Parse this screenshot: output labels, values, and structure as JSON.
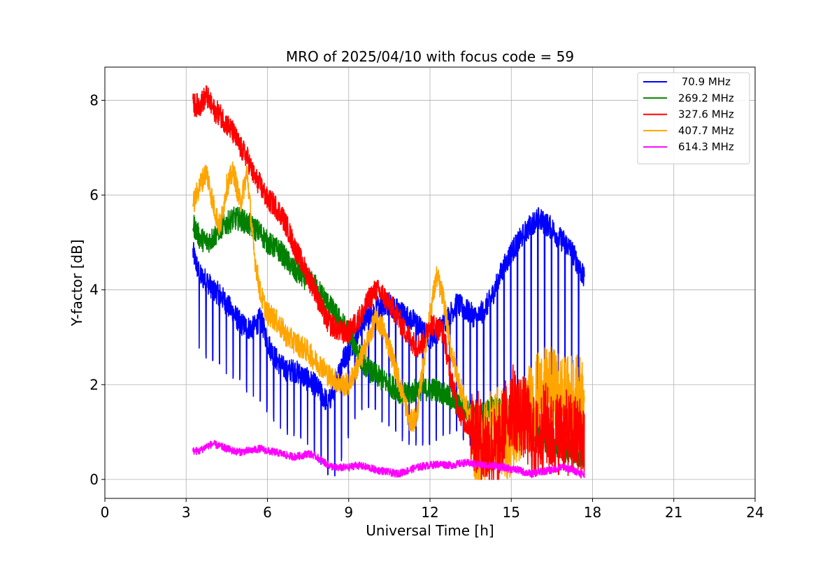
{
  "chart_data": {
    "type": "line",
    "title": "MRO of 2025/04/10 with focus code = 59",
    "xlabel": "Universal Time [h]",
    "ylabel": "Y-factor [dB]",
    "xlim": [
      0,
      24
    ],
    "ylim": [
      -0.4,
      8.7
    ],
    "xticks": [
      0,
      3,
      6,
      9,
      12,
      15,
      18,
      21,
      24
    ],
    "yticks": [
      0,
      2,
      4,
      6,
      8
    ],
    "grid": true,
    "legend_position": "top-right",
    "series": [
      {
        "name": " 70.9 MHz",
        "color": "#0000ff",
        "x": [
          3.25,
          3.5,
          3.75,
          4.0,
          4.25,
          4.5,
          4.75,
          5.0,
          5.25,
          5.5,
          5.75,
          6.0,
          6.25,
          6.5,
          6.75,
          7.0,
          7.25,
          7.5,
          7.75,
          8.0,
          8.25,
          8.5,
          8.75,
          9.0,
          9.25,
          9.5,
          9.75,
          10.0,
          10.25,
          10.5,
          10.75,
          11.0,
          11.25,
          11.5,
          11.75,
          12.0,
          12.25,
          12.5,
          12.75,
          13.0,
          13.25,
          13.5,
          13.75,
          14.0,
          14.25,
          14.5,
          14.75,
          15.0,
          15.25,
          15.5,
          15.75,
          16.0,
          16.25,
          16.5,
          16.75,
          17.0,
          17.25,
          17.5,
          17.7
        ],
        "y": [
          4.8,
          4.3,
          4.2,
          4.0,
          3.9,
          3.7,
          3.5,
          3.3,
          3.2,
          3.2,
          3.4,
          2.9,
          2.6,
          2.4,
          2.3,
          2.3,
          2.2,
          2.1,
          2.0,
          1.8,
          1.6,
          2.0,
          2.5,
          2.7,
          3.0,
          3.3,
          3.5,
          3.6,
          3.7,
          3.7,
          3.6,
          3.5,
          3.4,
          3.3,
          3.1,
          3.0,
          3.1,
          3.3,
          3.5,
          3.7,
          3.6,
          3.5,
          3.4,
          3.6,
          3.8,
          4.2,
          4.5,
          4.8,
          5.0,
          5.2,
          5.4,
          5.5,
          5.4,
          5.3,
          5.1,
          5.0,
          4.8,
          4.5,
          4.2
        ],
        "dips": [
          2.8,
          2.7,
          2.6,
          2.5,
          2.4,
          2.3,
          2.2,
          2.1,
          1.9,
          1.8,
          1.6,
          1.5,
          1.3,
          1.1,
          1.0,
          1.0,
          0.9,
          0.8,
          0.5,
          0.3,
          0.0,
          0.0,
          0.5,
          1.0,
          1.3,
          1.5,
          1.5,
          1.4,
          1.2,
          1.1,
          1.0,
          0.9,
          0.8,
          0.8,
          0.7,
          0.7,
          0.8,
          0.9,
          1.0,
          1.1,
          0.9,
          0.8,
          0.6,
          0.6,
          0.7,
          0.8,
          0.9,
          1.0,
          1.2,
          1.3,
          1.4,
          1.5,
          1.4,
          1.3,
          1.2,
          1.1,
          1.0,
          0.9,
          0.9
        ]
      },
      {
        "name": "269.2 MHz",
        "color": "#008000",
        "x": [
          3.25,
          3.5,
          3.75,
          4.0,
          4.25,
          4.5,
          4.75,
          5.0,
          5.25,
          5.5,
          5.75,
          6.0,
          6.25,
          6.5,
          6.75,
          7.0,
          7.25,
          7.5,
          7.75,
          8.0,
          8.25,
          8.5,
          8.75,
          9.0,
          9.25,
          9.5,
          9.75,
          10.0,
          10.25,
          10.5,
          10.75,
          11.0,
          11.25,
          11.5,
          11.75,
          12.0,
          12.25,
          12.5,
          12.75,
          13.0,
          13.25,
          13.5,
          13.75,
          14.0,
          14.25,
          14.5,
          14.75,
          15.0,
          15.25,
          15.5,
          15.75,
          16.0,
          16.25,
          16.5,
          16.75,
          17.0,
          17.25,
          17.5,
          17.7
        ],
        "y": [
          5.4,
          5.1,
          5.0,
          5.1,
          5.3,
          5.4,
          5.5,
          5.5,
          5.4,
          5.3,
          5.2,
          5.0,
          4.9,
          4.8,
          4.6,
          4.4,
          4.3,
          4.2,
          4.1,
          3.9,
          3.7,
          3.5,
          3.3,
          3.1,
          2.8,
          2.5,
          2.3,
          2.2,
          2.1,
          2.0,
          1.9,
          1.8,
          1.8,
          1.9,
          1.9,
          1.9,
          1.9,
          1.8,
          1.7,
          1.6,
          1.5,
          1.4,
          1.3,
          1.4,
          1.5,
          1.5,
          1.4,
          1.3,
          1.2,
          1.1,
          1.0,
          0.9,
          0.8,
          0.7,
          0.7,
          0.6,
          0.6,
          0.5,
          0.5
        ]
      },
      {
        "name": "327.6 MHz",
        "color": "#ff0000",
        "x": [
          3.25,
          3.5,
          3.75,
          4.0,
          4.25,
          4.5,
          4.75,
          5.0,
          5.25,
          5.5,
          5.75,
          6.0,
          6.25,
          6.5,
          6.75,
          7.0,
          7.25,
          7.5,
          7.75,
          8.0,
          8.25,
          8.5,
          8.75,
          9.0,
          9.25,
          9.5,
          9.75,
          10.0,
          10.25,
          10.5,
          10.75,
          11.0,
          11.25,
          11.5,
          11.75,
          12.0,
          12.25,
          12.5,
          12.75,
          13.0,
          13.25,
          13.5,
          13.75,
          14.0,
          14.25,
          14.5,
          14.75,
          15.0,
          15.25,
          15.5,
          15.75,
          16.0,
          16.25,
          16.5,
          16.75,
          17.0,
          17.25,
          17.5,
          17.7
        ],
        "y": [
          7.9,
          7.9,
          8.1,
          7.8,
          7.7,
          7.5,
          7.3,
          7.0,
          6.8,
          6.4,
          6.2,
          5.9,
          5.8,
          5.6,
          5.3,
          4.9,
          4.6,
          4.3,
          4.0,
          3.6,
          3.3,
          3.2,
          3.1,
          3.1,
          3.3,
          3.5,
          3.8,
          4.0,
          3.9,
          3.7,
          3.5,
          3.2,
          3.0,
          2.8,
          2.9,
          3.3,
          3.2,
          3.1,
          2.2,
          1.6,
          1.2,
          1.1,
          1.0,
          0.7,
          0.7,
          0.6,
          1.2,
          1.6,
          1.4,
          1.3,
          0.9,
          0.8,
          1.2,
          0.9,
          1.0,
          1.0,
          0.9,
          0.9,
          0.9
        ],
        "noise_from_x": 13.5
      },
      {
        "name": "407.7 MHz",
        "color": "#ffa500",
        "x": [
          3.25,
          3.5,
          3.75,
          4.0,
          4.25,
          4.5,
          4.75,
          5.0,
          5.25,
          5.5,
          5.75,
          6.0,
          6.25,
          6.5,
          6.75,
          7.0,
          7.25,
          7.5,
          7.75,
          8.0,
          8.25,
          8.5,
          8.75,
          9.0,
          9.25,
          9.5,
          9.75,
          10.0,
          10.25,
          10.5,
          10.75,
          11.0,
          11.25,
          11.5,
          11.75,
          12.0,
          12.25,
          12.5,
          12.75,
          13.0,
          13.25,
          13.5,
          13.75,
          14.0,
          14.25,
          14.5,
          14.75,
          15.0,
          15.25,
          15.5,
          15.75,
          16.0,
          16.25,
          16.5,
          16.75,
          17.0,
          17.25,
          17.5,
          17.7
        ],
        "y": [
          5.8,
          6.2,
          6.5,
          5.8,
          5.3,
          6.2,
          6.5,
          5.8,
          6.5,
          4.8,
          3.9,
          3.5,
          3.4,
          3.2,
          3.0,
          2.9,
          2.8,
          2.7,
          2.5,
          2.4,
          2.2,
          2.1,
          2.0,
          2.0,
          2.3,
          2.6,
          3.0,
          3.4,
          3.2,
          2.8,
          2.3,
          1.8,
          1.2,
          1.3,
          2.4,
          3.5,
          4.3,
          3.8,
          2.8,
          2.2,
          1.7,
          1.2,
          0.6,
          0.8,
          1.0,
          1.1,
          0.9,
          0.9,
          1.2,
          1.4,
          1.6,
          1.8,
          1.9,
          1.9,
          1.8,
          1.7,
          1.8,
          1.7,
          1.9
        ],
        "noise_from_x": 13.5
      },
      {
        "name": "614.3 MHz",
        "color": "#ff00ff",
        "x": [
          3.25,
          3.5,
          3.75,
          4.0,
          4.25,
          4.5,
          4.75,
          5.0,
          5.25,
          5.5,
          5.75,
          6.0,
          6.25,
          6.5,
          6.75,
          7.0,
          7.25,
          7.5,
          7.75,
          8.0,
          8.25,
          8.5,
          8.75,
          9.0,
          9.25,
          9.5,
          9.75,
          10.0,
          10.25,
          10.5,
          10.75,
          11.0,
          11.25,
          11.5,
          11.75,
          12.0,
          12.25,
          12.5,
          12.75,
          13.0,
          13.25,
          13.5,
          13.75,
          14.0,
          14.25,
          14.5,
          14.75,
          15.0,
          15.25,
          15.5,
          15.75,
          16.0,
          16.25,
          16.5,
          16.75,
          17.0,
          17.25,
          17.5,
          17.7
        ],
        "y": [
          0.6,
          0.6,
          0.7,
          0.75,
          0.7,
          0.65,
          0.6,
          0.58,
          0.6,
          0.62,
          0.65,
          0.6,
          0.58,
          0.55,
          0.5,
          0.48,
          0.5,
          0.55,
          0.5,
          0.4,
          0.3,
          0.25,
          0.25,
          0.25,
          0.3,
          0.28,
          0.25,
          0.2,
          0.18,
          0.15,
          0.12,
          0.15,
          0.2,
          0.25,
          0.28,
          0.3,
          0.32,
          0.32,
          0.3,
          0.32,
          0.35,
          0.34,
          0.32,
          0.3,
          0.3,
          0.28,
          0.25,
          0.22,
          0.2,
          0.15,
          0.12,
          0.15,
          0.18,
          0.2,
          0.25,
          0.25,
          0.2,
          0.15,
          0.1
        ]
      }
    ]
  }
}
